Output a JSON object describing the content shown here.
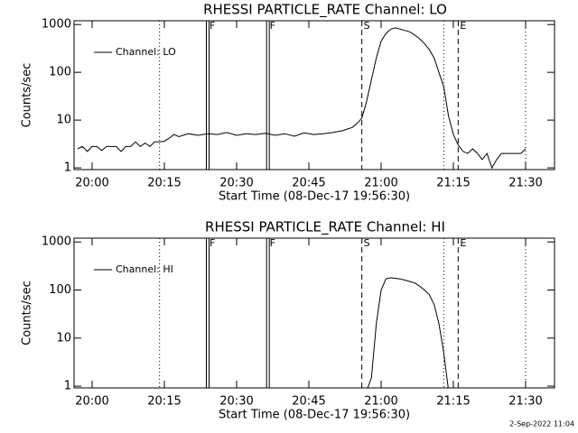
{
  "chart_data": [
    {
      "type": "line",
      "title": "RHESSI PARTICLE_RATE Channel: LO",
      "x_label": "Start Time (08-Dec-17 19:56:30)",
      "y_label": "Counts/sec",
      "log_y": true,
      "xlim": [
        "19:56:15",
        "21:36:00"
      ],
      "ylim": [
        0.92,
        1200
      ],
      "xticks": [
        "20:00",
        "20:15",
        "20:30",
        "20:45",
        "21:00",
        "21:15",
        "21:30"
      ],
      "yticks": [
        1,
        10,
        100,
        1000
      ],
      "x": [
        "19:57",
        "19:58",
        "19:59",
        "20:00",
        "20:01",
        "20:02",
        "20:03",
        "20:04",
        "20:05",
        "20:06",
        "20:07",
        "20:08",
        "20:09",
        "20:10",
        "20:11",
        "20:12",
        "20:13",
        "20:14",
        "20:15",
        "20:16",
        "20:17",
        "20:18",
        "20:20",
        "20:22",
        "20:24",
        "20:26",
        "20:28",
        "20:30",
        "20:32",
        "20:34",
        "20:36",
        "20:38",
        "20:40",
        "20:42",
        "20:44",
        "20:46",
        "20:48",
        "20:50",
        "20:52",
        "20:53",
        "20:54",
        "20:55",
        "20:56",
        "20:57",
        "20:58",
        "20:59",
        "21:00",
        "21:01",
        "21:02",
        "21:03",
        "21:04",
        "21:05",
        "21:06",
        "21:07",
        "21:08",
        "21:09",
        "21:10",
        "21:11",
        "21:12",
        "21:13",
        "21:14",
        "21:15",
        "21:16",
        "21:17",
        "21:18",
        "21:19",
        "21:20",
        "21:21",
        "21:22",
        "21:23",
        "21:24",
        "21:25",
        "21:27",
        "21:29",
        "21:30"
      ],
      "series": [
        {
          "name": "Channel: LO",
          "color": "#000000",
          "values": [
            2.5,
            2.8,
            2.2,
            2.8,
            2.8,
            2.3,
            2.8,
            2.8,
            2.8,
            2.2,
            2.8,
            2.8,
            3.5,
            2.8,
            3.3,
            2.8,
            3.5,
            3.5,
            3.6,
            4.2,
            5,
            4.5,
            5.2,
            4.8,
            5.2,
            5,
            5.5,
            4.8,
            5.2,
            5,
            5.3,
            4.8,
            5.2,
            4.6,
            5.4,
            5,
            5.2,
            5.5,
            6,
            6.5,
            7,
            8.5,
            11,
            25,
            70,
            200,
            450,
            650,
            800,
            850,
            800,
            750,
            700,
            600,
            500,
            400,
            300,
            200,
            100,
            50,
            12,
            5,
            3,
            2.2,
            2,
            2.5,
            2,
            1.5,
            2,
            1,
            1.5,
            2,
            2,
            2,
            2.5
          ]
        }
      ],
      "markers": [
        {
          "x": "20:14",
          "style": "dotted"
        },
        {
          "x": "21:13",
          "style": "dotted"
        },
        {
          "x": "21:30",
          "style": "dotted"
        },
        {
          "x": "20:24",
          "style": "double",
          "label": "F"
        },
        {
          "x": "20:36:30",
          "style": "double",
          "label": "F"
        },
        {
          "x": "20:56",
          "style": "dashed",
          "label": "S"
        },
        {
          "x": "21:16",
          "style": "dashed",
          "label": "E"
        }
      ]
    },
    {
      "type": "line",
      "title": "RHESSI PARTICLE_RATE Channel: HI",
      "x_label": "Start Time (08-Dec-17 19:56:30)",
      "y_label": "Counts/sec",
      "log_y": true,
      "xlim": [
        "19:56:15",
        "21:36:00"
      ],
      "ylim": [
        0.92,
        1200
      ],
      "xticks": [
        "20:00",
        "20:15",
        "20:30",
        "20:45",
        "21:00",
        "21:15",
        "21:30"
      ],
      "yticks": [
        1,
        10,
        100,
        1000
      ],
      "x": [
        "20:57",
        "20:58",
        "20:59",
        "21:00",
        "21:01",
        "21:02",
        "21:03",
        "21:04",
        "21:05",
        "21:06",
        "21:07",
        "21:08",
        "21:09",
        "21:10",
        "21:11",
        "21:12",
        "21:13",
        "21:14"
      ],
      "series": [
        {
          "name": "Channel: HI",
          "color": "#000000",
          "values": [
            0.8,
            1.5,
            20,
            100,
            170,
            180,
            175,
            170,
            160,
            150,
            140,
            120,
            100,
            80,
            50,
            20,
            5,
            0.8
          ]
        }
      ],
      "markers": [
        {
          "x": "20:14",
          "style": "dotted"
        },
        {
          "x": "21:13",
          "style": "dotted"
        },
        {
          "x": "21:30",
          "style": "dotted"
        },
        {
          "x": "20:24",
          "style": "double",
          "label": "F"
        },
        {
          "x": "20:36:30",
          "style": "double",
          "label": "F"
        },
        {
          "x": "20:56",
          "style": "dashed",
          "label": "S"
        },
        {
          "x": "21:16",
          "style": "dashed",
          "label": "E"
        }
      ]
    }
  ],
  "footer": "2-Sep-2022 11:04"
}
